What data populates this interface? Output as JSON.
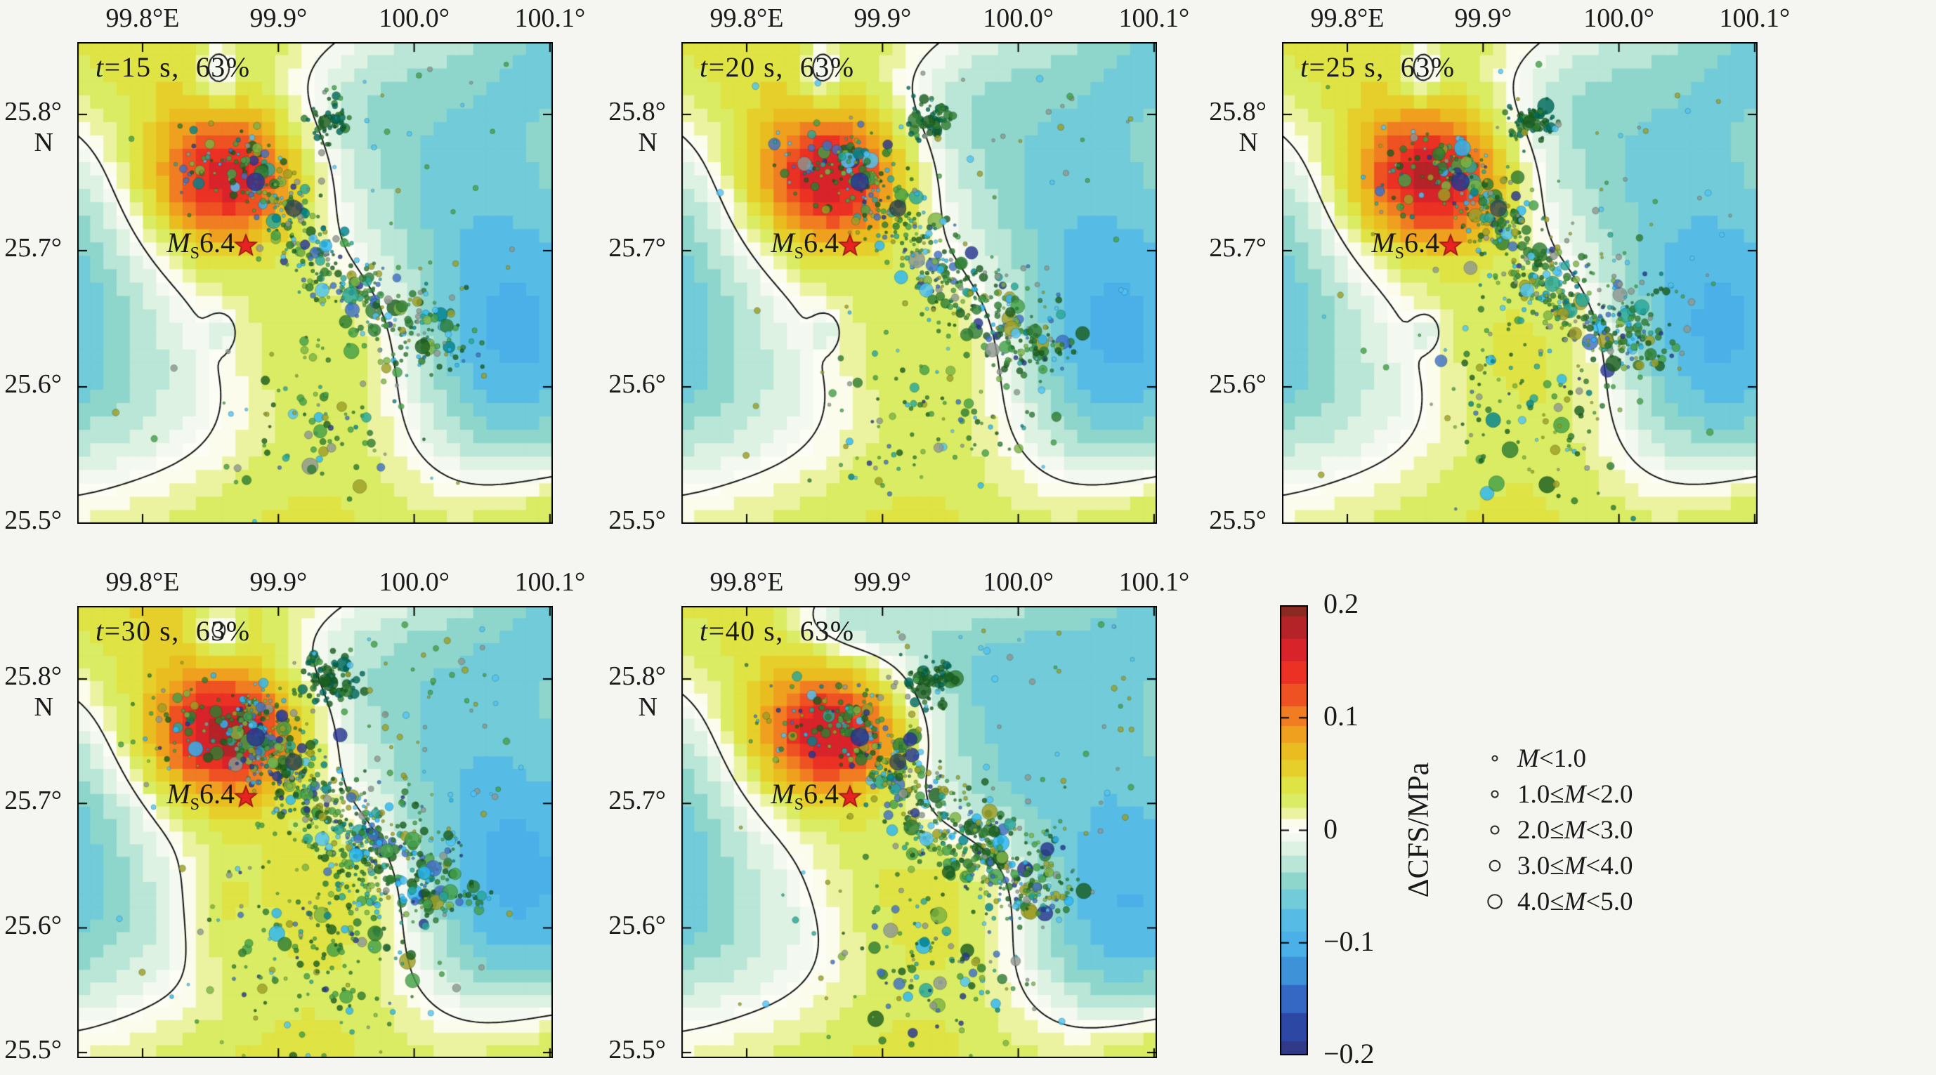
{
  "figure": {
    "background_color": "#f5f5f2",
    "text_color": "#1a1a1a",
    "contour_color": "#151515",
    "star_fill": "#e62320",
    "star_stroke": "#8a1410"
  },
  "chart_data": {
    "type": "heatmap",
    "description_visible_text_only": true,
    "x_axis": {
      "ticks": [
        "99.8°E",
        "99.9°",
        "100.0°",
        "100.1°"
      ],
      "tick_values": [
        99.8,
        99.9,
        100.0,
        100.1
      ],
      "range": [
        99.752,
        100.102
      ]
    },
    "y_axis": {
      "ticks": [
        "25.8°",
        "25.7°",
        "25.6°",
        "25.5°"
      ],
      "tick_values": [
        25.8,
        25.7,
        25.6,
        25.5
      ],
      "north_label": "N",
      "range": [
        25.5,
        25.85
      ]
    },
    "epicenter": {
      "m": "M",
      "sub": "S",
      "mag": "6.4",
      "lon_frac": 0.3545,
      "lat_frac": 0.423
    },
    "panels": [
      {
        "id": "t15",
        "title": "t=15 s,  63%",
        "time_s": 15,
        "percent": 63,
        "seed": 11,
        "aftershock_count": 620,
        "spread_scale": 1.0,
        "lobe_overrides": [],
        "extra_lobes": []
      },
      {
        "id": "t20",
        "title": "t=20 s,  63%",
        "time_s": 20,
        "percent": 63,
        "seed": 12,
        "aftershock_count": 730,
        "spread_scale": 1.0,
        "lobe_overrides": [
          {
            "i": 0,
            "a": 0.147
          }
        ],
        "extra_lobes": []
      },
      {
        "id": "t25",
        "title": "t=25 s,  63%",
        "time_s": 25,
        "percent": 63,
        "seed": 13,
        "aftershock_count": 830,
        "spread_scale": 1.05,
        "lobe_overrides": [
          {
            "i": 0,
            "a": 0.154
          },
          {
            "i": 2,
            "a": 0.06
          }
        ],
        "extra_lobes": []
      },
      {
        "id": "t30",
        "title": "t=30 s,  63%",
        "time_s": 30,
        "percent": 63,
        "seed": 14,
        "aftershock_count": 1150,
        "spread_scale": 1.3,
        "lobe_overrides": [
          {
            "i": 0,
            "a": 0.16
          },
          {
            "i": 1,
            "a": 0.055
          },
          {
            "i": 2,
            "a": 0.065
          },
          {
            "i": 8,
            "a": -0.05
          },
          {
            "i": 11,
            "x": 0.16,
            "a": -0.024
          },
          {
            "i": 12,
            "a": 0
          }
        ],
        "extra_lobes": [
          {
            "a": 0.022,
            "x": 0.295,
            "y": 0.68,
            "sx": 0.05,
            "sy": 0.1
          }
        ]
      },
      {
        "id": "t40",
        "title": "t=40 s,  63%",
        "time_s": 40,
        "percent": 63,
        "seed": 15,
        "aftershock_count": 920,
        "spread_scale": 1.15,
        "lobe_overrides": [
          {
            "i": 0,
            "a": 0.15
          },
          {
            "i": 2,
            "a": 0.065
          },
          {
            "i": 4,
            "a": 0.045
          },
          {
            "i": 7,
            "x": 0.92,
            "y": 0.7
          },
          {
            "i": 10,
            "a": -0.06,
            "x": 0.36,
            "y": 0.02,
            "sx": 0.1,
            "sy": 0.07
          },
          {
            "i": 12,
            "a": 0
          },
          {
            "i": 13,
            "a": -0.04
          },
          {
            "i": 14,
            "a": -0.038
          }
        ],
        "extra_lobes": [
          {
            "a": -0.02,
            "x": 0.6,
            "y": 0.42,
            "sx": 0.12,
            "sy": 0.1
          }
        ]
      }
    ],
    "stress_field": {
      "grid": 36,
      "base_lobes": [
        {
          "a": 0.14,
          "x": 0.315,
          "y": 0.285,
          "sx": 0.105,
          "sy": 0.095
        },
        {
          "a": 0.05,
          "x": 0.2,
          "y": 0.02,
          "sx": 0.4,
          "sy": 0.3
        },
        {
          "a": 0.055,
          "x": 0.58,
          "y": 0.62,
          "sx": 0.2,
          "sy": 0.17
        },
        {
          "a": 0.04,
          "x": 0.45,
          "y": 1.05,
          "sx": 0.4,
          "sy": 0.18
        },
        {
          "a": 0.035,
          "x": 1.02,
          "y": 1.0,
          "sx": 0.14,
          "sy": 0.1
        },
        {
          "a": -0.065,
          "x": -0.07,
          "y": 0.4,
          "sx": 0.15,
          "sy": 0.22
        },
        {
          "a": -0.035,
          "x": -0.05,
          "y": 0.66,
          "sx": 0.11,
          "sy": 0.16
        },
        {
          "a": -0.07,
          "x": 0.9,
          "y": 0.64,
          "sx": 0.15,
          "sy": 0.18
        },
        {
          "a": -0.045,
          "x": 0.85,
          "y": 0.48,
          "sx": 0.28,
          "sy": 0.3
        },
        {
          "a": -0.045,
          "x": 1.03,
          "y": 0.02,
          "sx": 0.16,
          "sy": 0.12
        },
        {
          "a": -0.055,
          "x": 0.295,
          "y": 0.06,
          "sx": 0.034,
          "sy": 0.05
        },
        {
          "a": -0.028,
          "x": 0.18,
          "y": 0.75,
          "sx": 0.17,
          "sy": 0.17
        },
        {
          "a": -0.03,
          "x": 0.305,
          "y": 0.6,
          "sx": 0.02,
          "sy": 0.026
        },
        {
          "a": -0.028,
          "x": 0.58,
          "y": 0.1,
          "sx": 0.16,
          "sy": 0.11
        },
        {
          "a": -0.03,
          "x": 0.72,
          "y": 0.25,
          "sx": 0.2,
          "sy": 0.2
        }
      ]
    },
    "aftershocks": {
      "band_path": [
        [
          0.335,
          0.215
        ],
        [
          0.42,
          0.33
        ],
        [
          0.5,
          0.43
        ],
        [
          0.575,
          0.52
        ],
        [
          0.66,
          0.575
        ],
        [
          0.76,
          0.625
        ]
      ],
      "band_sigma": 0.035,
      "clusters": [
        {
          "x": 0.525,
          "y": 0.165,
          "sx": 0.025,
          "sy": 0.022,
          "frac": 0.08,
          "dark": true
        },
        {
          "x": 0.78,
          "y": 0.635,
          "sx": 0.03,
          "sy": 0.025,
          "frac": 0.05,
          "dark": false
        },
        {
          "x": 0.46,
          "y": 0.75,
          "sx": 0.08,
          "sy": 0.09,
          "frac": 0.08,
          "dark": false
        },
        {
          "x": 0.6,
          "y": 0.8,
          "sx": 0.07,
          "sy": 0.07,
          "frac": 0.05,
          "dark": false
        },
        {
          "x": 0.26,
          "y": 0.26,
          "sx": 0.05,
          "sy": 0.045,
          "frac": 0.05,
          "dark": false
        }
      ],
      "outlier_frac": 0.08,
      "palette": [
        [
          "#2e7d32",
          0.2
        ],
        [
          "#43a047",
          0.15
        ],
        [
          "#1b5e20",
          0.12
        ],
        [
          "#7cb342",
          0.08
        ],
        [
          "#9e9d24",
          0.08
        ],
        [
          "#26a69a",
          0.08
        ],
        [
          "#29b6f6",
          0.07
        ],
        [
          "#4fc3f7",
          0.04
        ],
        [
          "#3f6fc4",
          0.06
        ],
        [
          "#283593",
          0.04
        ],
        [
          "#8f9690",
          0.06
        ],
        [
          "#00838f",
          0.02
        ]
      ],
      "dark_palette": [
        "#1b5e20",
        "#2e7d32",
        "#00695c"
      ],
      "outlier_palette": [
        "#8f9690",
        "#4fc3f7",
        "#43a047",
        "#9e9d24"
      ],
      "special_dots": [
        {
          "x": 0.375,
          "y": 0.29,
          "r": 13,
          "c": "#283593"
        },
        {
          "x": 0.455,
          "y": 0.345,
          "r": 12,
          "c": "#37474f"
        },
        {
          "x": 0.515,
          "y": 0.515,
          "r": 10,
          "c": "#4fc3f7"
        },
        {
          "x": 0.52,
          "y": 0.165,
          "r": 9,
          "c": "#1b5e20"
        }
      ]
    },
    "colorbar": {
      "label": "ΔCFS/MPa",
      "tick_labels": [
        "0.2",
        "0.1",
        "0",
        "−0.1",
        "−0.2"
      ],
      "tick_values": [
        0.2,
        0.1,
        0,
        -0.1,
        -0.2
      ],
      "range": [
        -0.2,
        0.2
      ],
      "stops": [
        {
          "v": 0.2,
          "c": "#8b2a23"
        },
        {
          "v": 0.18,
          "c": "#b42327"
        },
        {
          "v": 0.16,
          "c": "#d8232b"
        },
        {
          "v": 0.14,
          "c": "#ea3123"
        },
        {
          "v": 0.12,
          "c": "#ee5122"
        },
        {
          "v": 0.1,
          "c": "#f07d22"
        },
        {
          "v": 0.085,
          "c": "#efa01e"
        },
        {
          "v": 0.07,
          "c": "#e9bc20"
        },
        {
          "v": 0.055,
          "c": "#e6cf2b"
        },
        {
          "v": 0.04,
          "c": "#dfe343"
        },
        {
          "v": 0.025,
          "c": "#d9ec63"
        },
        {
          "v": 0.015,
          "c": "#ecf3a0"
        },
        {
          "v": 0.005,
          "c": "#fbfceb"
        },
        {
          "v": 0.0,
          "c": "#fcfdf5"
        },
        {
          "v": -0.005,
          "c": "#f3f9f0"
        },
        {
          "v": -0.015,
          "c": "#ddf2e2"
        },
        {
          "v": -0.03,
          "c": "#b9e6d6"
        },
        {
          "v": -0.045,
          "c": "#8ed6cb"
        },
        {
          "v": -0.06,
          "c": "#72cbd8"
        },
        {
          "v": -0.08,
          "c": "#57bce5"
        },
        {
          "v": -0.1,
          "c": "#4bb0e8"
        },
        {
          "v": -0.125,
          "c": "#3e92d8"
        },
        {
          "v": -0.15,
          "c": "#3568c5"
        },
        {
          "v": -0.175,
          "c": "#2d47a4"
        },
        {
          "v": -0.2,
          "c": "#303a88"
        }
      ]
    },
    "magnitude_legend": [
      {
        "pre": "",
        "m": "M",
        "post": "<1.0",
        "radius_px": 3.5
      },
      {
        "pre": "1.0≤",
        "m": "M",
        "post": "<2.0",
        "radius_px": 4.5
      },
      {
        "pre": "2.0≤",
        "m": "M",
        "post": "<3.0",
        "radius_px": 5.5
      },
      {
        "pre": "3.0≤",
        "m": "M",
        "post": "<4.0",
        "radius_px": 7.3
      },
      {
        "pre": "4.0≤",
        "m": "M",
        "post": "<5.0",
        "radius_px": 9.7
      }
    ]
  }
}
